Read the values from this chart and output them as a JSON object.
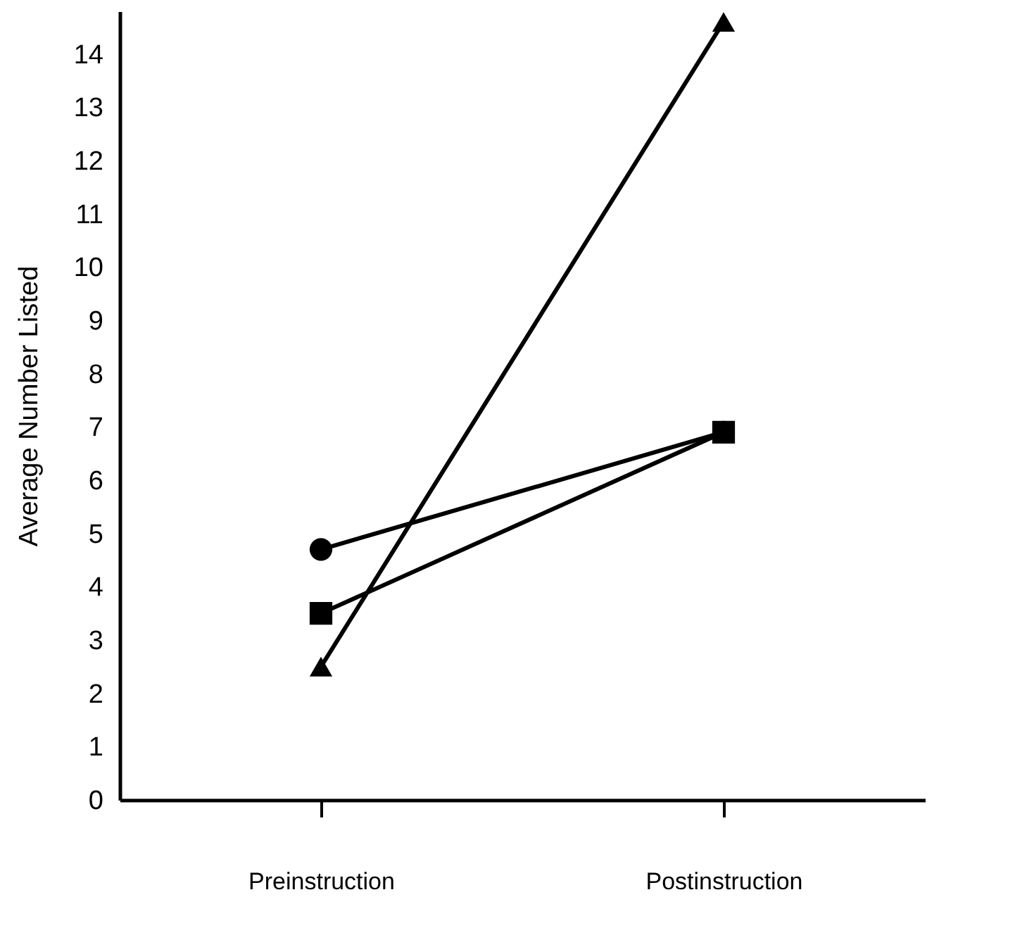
{
  "chart_data": {
    "type": "line",
    "ylabel": "Average Number Listed",
    "categories": [
      "Preinstruction",
      "Postinstruction"
    ],
    "series": [
      {
        "color": "#000000",
        "marker": "circle",
        "values": [
          4.7,
          6.9
        ]
      },
      {
        "color": "#000000",
        "marker": "square",
        "values": [
          3.5,
          6.9
        ]
      },
      {
        "color": "#000000",
        "marker": "triangle",
        "values": [
          2.5,
          14.6
        ]
      }
    ],
    "ylim": [
      0,
      14.8
    ],
    "yticks": [
      0,
      1,
      2,
      3,
      4,
      5,
      6,
      7,
      8,
      9,
      10,
      11,
      12,
      13,
      14
    ],
    "grid": false,
    "line_style": "solid"
  }
}
